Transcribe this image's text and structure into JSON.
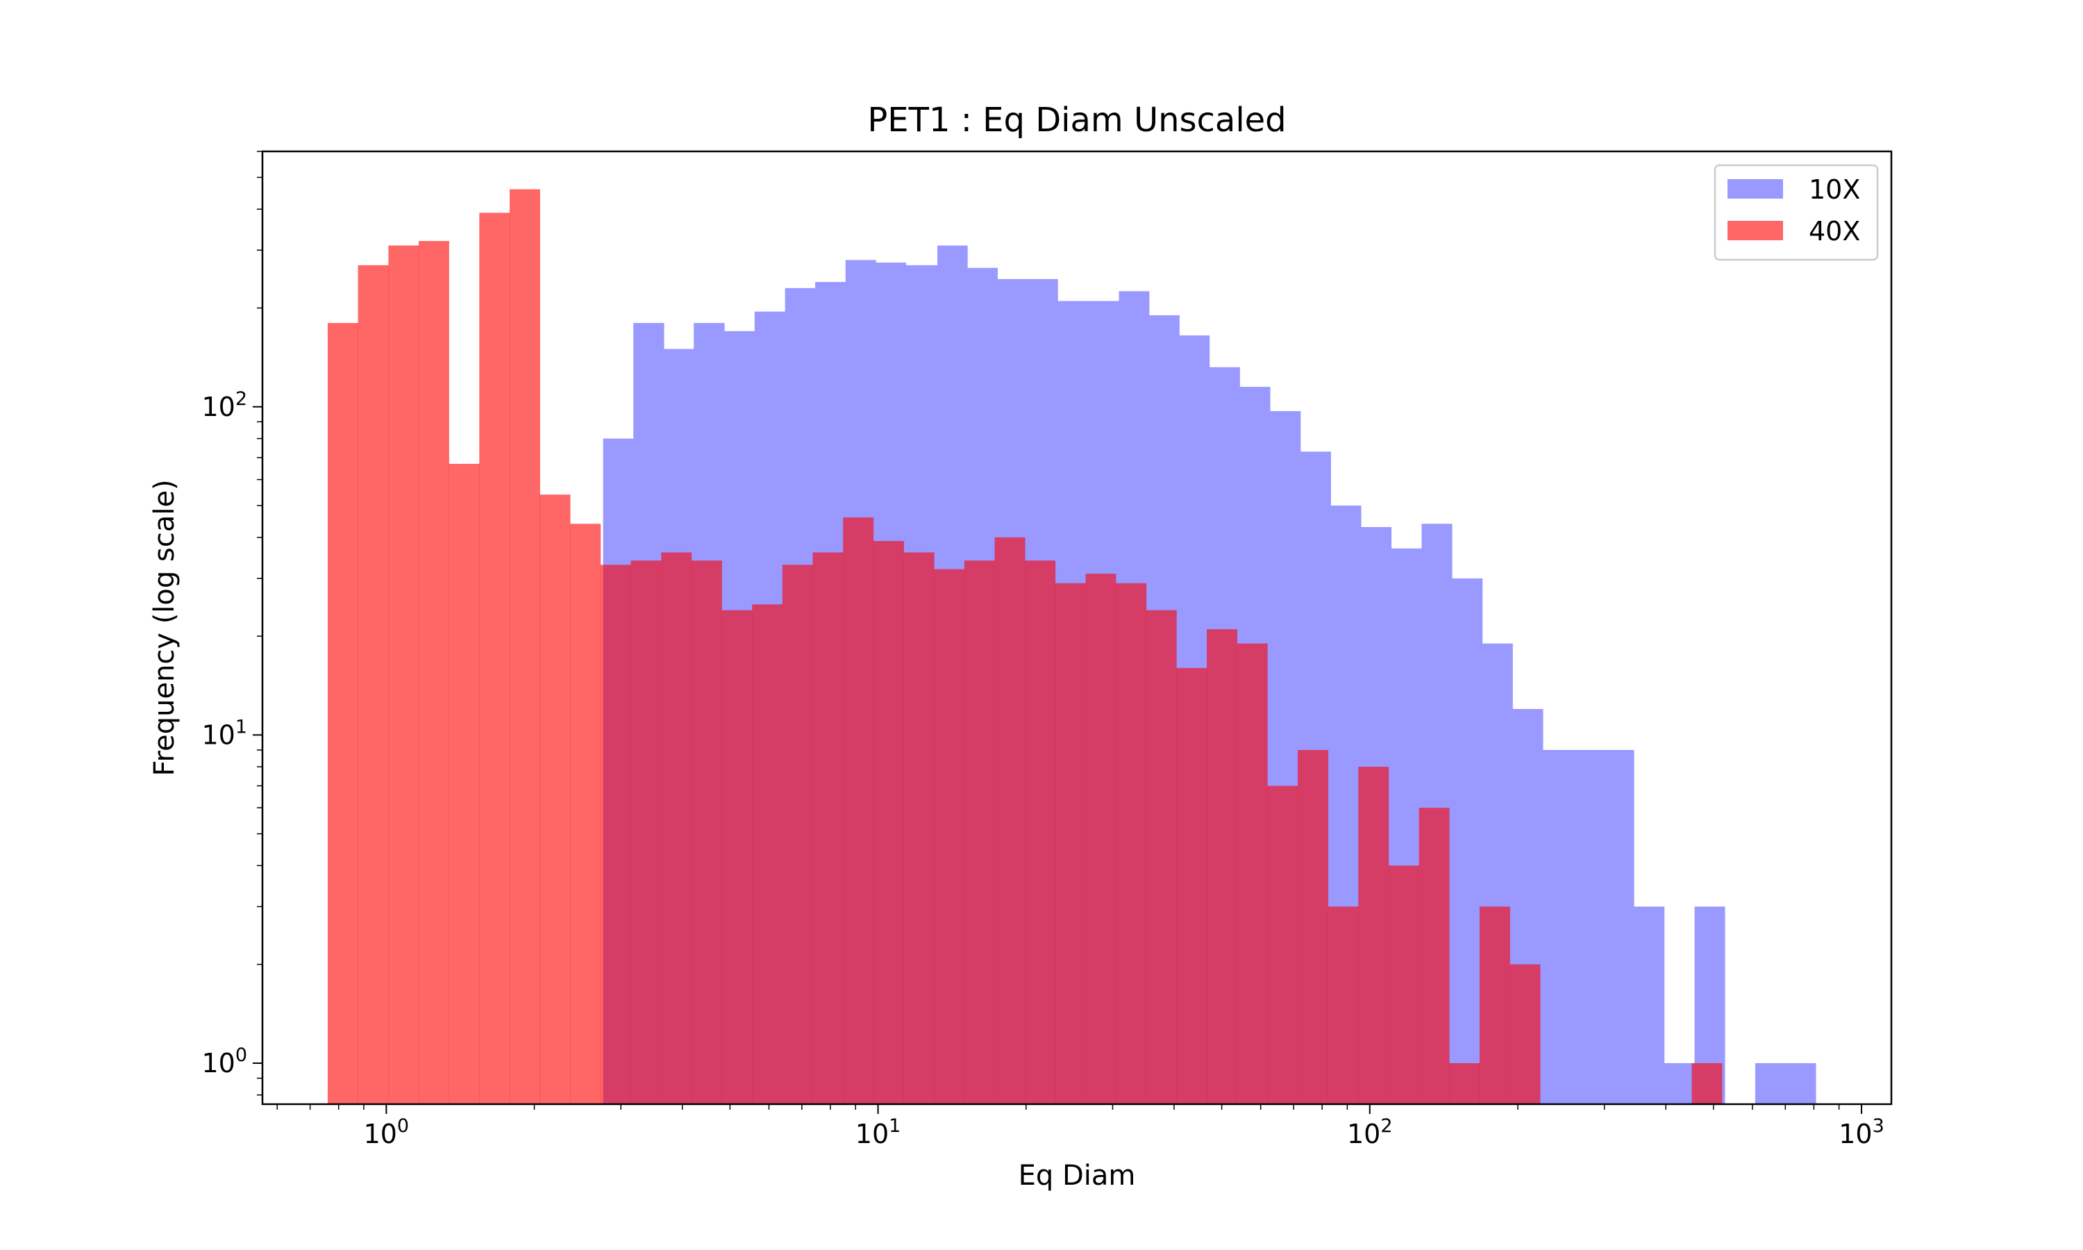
{
  "chart_data": {
    "type": "bar",
    "title": "PET1 : Eq Diam Unscaled",
    "xlabel": "Eq Diam",
    "ylabel": "Frequency (log scale)",
    "x_scale": "log",
    "y_scale": "log",
    "xlim": [
      0.56,
      1150
    ],
    "ylim": [
      0.75,
      600
    ],
    "x_tick_labels": [
      "10^0",
      "10^1",
      "10^2",
      "10^3"
    ],
    "y_tick_labels": [
      "10^0",
      "10^1",
      "10^2"
    ],
    "legend": {
      "placement": "top-right",
      "entries": [
        "10X",
        "40X"
      ]
    },
    "grid": false,
    "series": [
      {
        "name": "10X",
        "color": "#9999ff",
        "bin_edges": [
          2.76,
          3.18,
          3.67,
          4.22,
          4.87,
          5.61,
          6.47,
          7.45,
          8.59,
          9.9,
          11.4,
          13.2,
          15.2,
          17.5,
          20.1,
          23.2,
          26.8,
          30.9,
          35.6,
          41.0,
          47.2,
          54.4,
          62.7,
          72.3,
          83.3,
          96.0,
          110.6,
          127.5,
          147.0,
          169.4,
          195.2,
          225.0,
          259.3,
          298.9,
          344.5,
          397.0,
          457.6,
          527.4,
          607.8,
          700.5,
          807.3
        ],
        "values": [
          80,
          180,
          150,
          180,
          170,
          195,
          230,
          240,
          280,
          275,
          270,
          310,
          265,
          245,
          245,
          210,
          210,
          225,
          190,
          165,
          132,
          115,
          97,
          73,
          50,
          43,
          37,
          44,
          30,
          19,
          12,
          9,
          9,
          9,
          3,
          1,
          3,
          0,
          1,
          1
        ]
      },
      {
        "name": "40X",
        "color": "#ff0000",
        "bin_edges": [
          0.76,
          0.876,
          1.01,
          1.164,
          1.341,
          1.546,
          1.782,
          2.053,
          2.366,
          2.727,
          3.143,
          3.622,
          4.175,
          4.811,
          5.545,
          6.391,
          7.365,
          8.489,
          9.783,
          11.28,
          13.0,
          14.98,
          17.26,
          19.9,
          22.93,
          26.43,
          30.46,
          35.1,
          40.45,
          46.62,
          53.73,
          61.93,
          71.37,
          82.25,
          94.79,
          109.2,
          125.9,
          145.1,
          167.2,
          192.7,
          222.1,
          256.0,
          295.0,
          340.0,
          391.9,
          451.6,
          520.5
        ],
        "values": [
          180,
          270,
          310,
          320,
          67,
          390,
          460,
          54,
          44,
          33,
          34,
          36,
          34,
          24,
          25,
          33,
          36,
          46,
          39,
          36,
          32,
          34,
          40,
          34,
          29,
          31,
          29,
          24,
          16,
          21,
          19,
          7,
          9,
          3,
          8,
          4,
          6,
          1,
          3,
          2,
          0,
          0,
          0,
          0,
          0,
          1
        ]
      }
    ]
  }
}
